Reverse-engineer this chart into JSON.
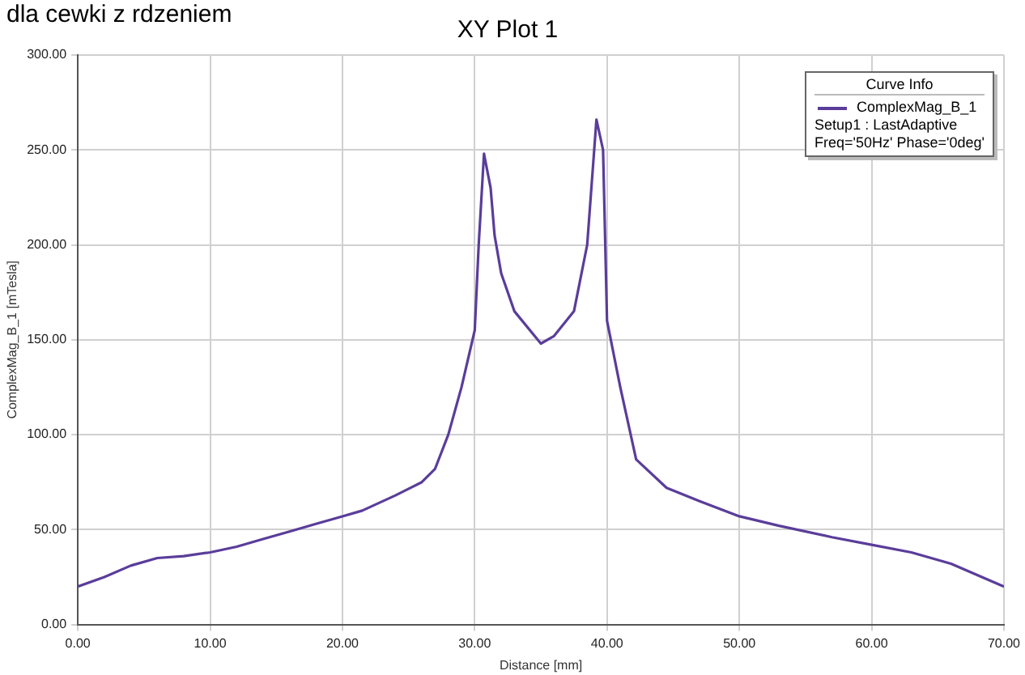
{
  "chart_data": {
    "type": "line",
    "title": "XY Plot 1",
    "xlabel": "Distance [mm]",
    "ylabel": "ComplexMag_B_1 [mTesla]",
    "legend_title": "Curve Info",
    "annotations": [
      "dla cewki z rdzeniem",
      "Setup1 : LastAdaptive",
      "Freq='50Hz' Phase='0deg'"
    ],
    "x": [
      0,
      2,
      4,
      6,
      8,
      10,
      12,
      14,
      16,
      18,
      20,
      21.5,
      24,
      26,
      27,
      28,
      29,
      30,
      30.3,
      30.7,
      31.2,
      31.5,
      32,
      33,
      35,
      36,
      37.5,
      38.5,
      39.2,
      39.7,
      40,
      41,
      42.2,
      44.5,
      47,
      50,
      53,
      57,
      60,
      63,
      66,
      70
    ],
    "series": [
      {
        "name": "ComplexMag_B_1",
        "color": "#5a3d9a",
        "values": [
          20,
          25,
          31,
          35,
          36,
          38,
          41,
          45,
          49,
          53,
          57,
          60,
          68,
          75,
          82,
          100,
          125,
          155,
          200,
          248,
          230,
          205,
          185,
          165,
          148,
          152,
          165,
          200,
          266,
          250,
          160,
          125,
          87,
          72,
          65,
          57,
          52,
          46,
          42,
          38,
          32,
          20
        ]
      }
    ],
    "xlim": [
      0,
      70
    ],
    "xticks": [
      {
        "value": 0,
        "label": "0.00"
      },
      {
        "value": 10,
        "label": "10.00"
      },
      {
        "value": 20,
        "label": "20.00"
      },
      {
        "value": 30,
        "label": "30.00"
      },
      {
        "value": 40,
        "label": "40.00"
      },
      {
        "value": 50,
        "label": "50.00"
      },
      {
        "value": 60,
        "label": "60.00"
      },
      {
        "value": 70,
        "label": "70.00"
      }
    ],
    "ylim": [
      0,
      300
    ],
    "yticks": [
      {
        "value": 0,
        "label": "0.00"
      },
      {
        "value": 50,
        "label": "50.00"
      },
      {
        "value": 100,
        "label": "100.00"
      },
      {
        "value": 150,
        "label": "150.00"
      },
      {
        "value": 200,
        "label": "200.00"
      },
      {
        "value": 250,
        "label": "250.00"
      },
      {
        "value": 300,
        "label": "300.00"
      }
    ],
    "grid": true,
    "legend": "top right",
    "marker": "none",
    "line_style": "solid"
  }
}
